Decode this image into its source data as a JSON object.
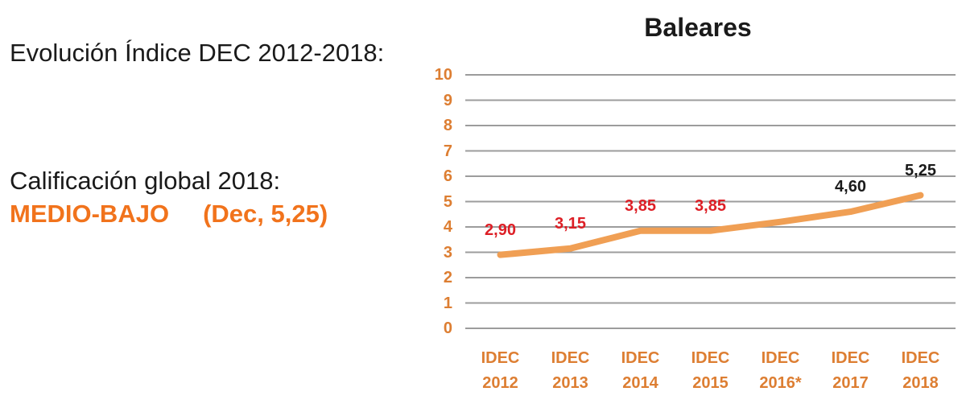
{
  "left_panel": {
    "line1": "Evolución Índice DEC 2012-2018:",
    "line2": "Calificación global 2018:",
    "rating": "MEDIO-BAJO",
    "rating_detail": "(Dec, 5,25)"
  },
  "colors": {
    "background": "#FFFFFF",
    "text": "#1A1A1A",
    "accent_orange": "#DD7E32",
    "rating_orange": "#F1731C",
    "line_orange": "#F09F54",
    "label_red": "#DD1F26",
    "label_black": "#1A1A1A",
    "gridline_gray": "#9C9C9C"
  },
  "chart_data": {
    "type": "line",
    "title": "Baleares",
    "categories": [
      "IDEC 2012",
      "IDEC 2013",
      "IDEC 2014",
      "IDEC 2015",
      "IDEC 2016*",
      "IDEC 2017",
      "IDEC 2018"
    ],
    "categories_lines": [
      {
        "line1": "IDEC",
        "line2": "2012"
      },
      {
        "line1": "IDEC",
        "line2": "2013"
      },
      {
        "line1": "IDEC",
        "line2": "2014"
      },
      {
        "line1": "IDEC",
        "line2": "2015"
      },
      {
        "line1": "IDEC",
        "line2": "2016*"
      },
      {
        "line1": "IDEC",
        "line2": "2017"
      },
      {
        "line1": "IDEC",
        "line2": "2018"
      }
    ],
    "series": [
      {
        "name": "IDEC",
        "values": [
          2.9,
          3.15,
          3.85,
          3.85,
          4.2,
          4.6,
          5.25
        ]
      }
    ],
    "value_2016_note": "unlabeled point, value estimated from line position",
    "data_labels": [
      "2,90",
      "3,15",
      "3,85",
      "3,85",
      null,
      "4,60",
      "5,25"
    ],
    "data_label_colors": [
      "red",
      "red",
      "red",
      "red",
      null,
      "black",
      "black"
    ],
    "xlabel": "",
    "ylabel": "",
    "ylim": [
      0,
      10
    ],
    "yticks": [
      10,
      9,
      8,
      7,
      6,
      5,
      4,
      3,
      2,
      1,
      0
    ],
    "grid": true,
    "legend": false
  }
}
